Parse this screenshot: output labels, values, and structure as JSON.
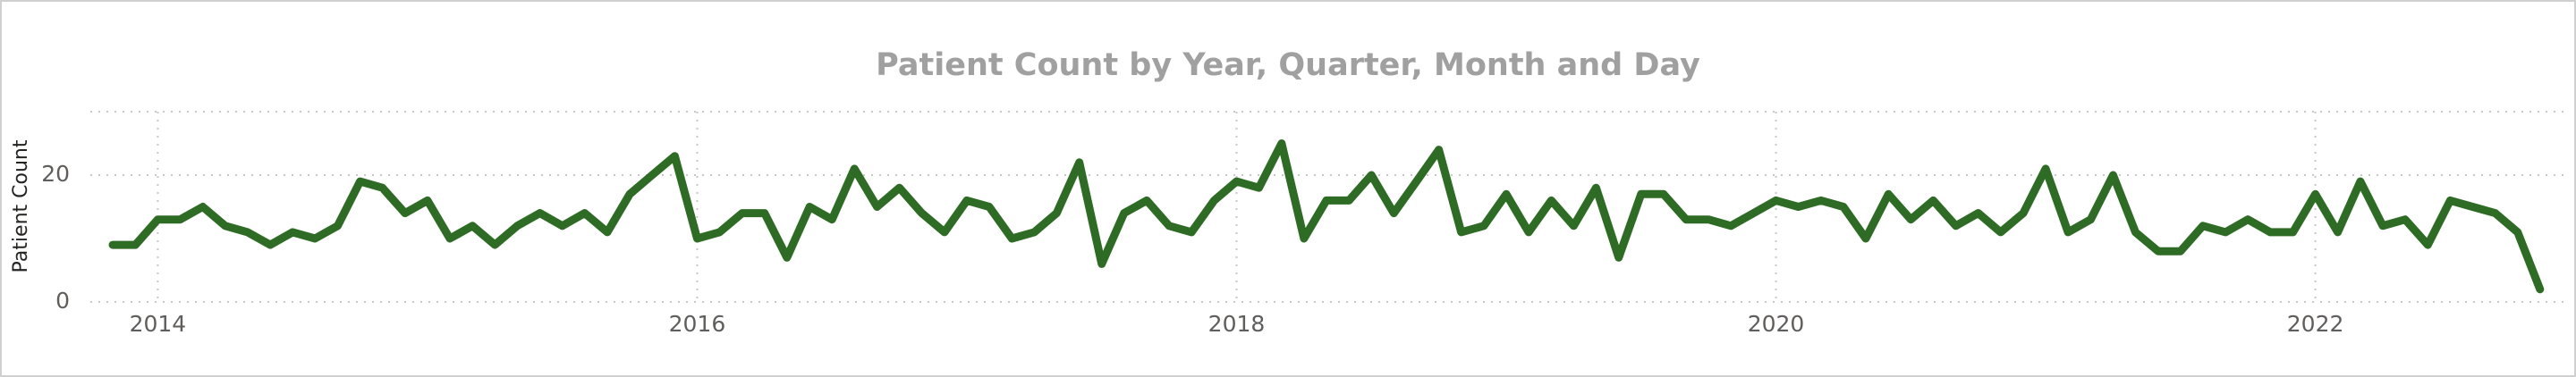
{
  "chart_data": {
    "type": "line",
    "title": "Patient Count by Year, Quarter, Month and Day",
    "ylabel": "Patient Count",
    "x": [
      2013.833,
      2013.917,
      2014,
      2014.083,
      2014.167,
      2014.25,
      2014.333,
      2014.417,
      2014.5,
      2014.583,
      2014.667,
      2014.75,
      2014.833,
      2014.917,
      2015,
      2015.083,
      2015.167,
      2015.25,
      2015.333,
      2015.417,
      2015.5,
      2015.583,
      2015.667,
      2015.75,
      2015.833,
      2015.917,
      2016,
      2016.083,
      2016.167,
      2016.25,
      2016.333,
      2016.417,
      2016.5,
      2016.583,
      2016.667,
      2016.75,
      2016.833,
      2016.917,
      2017,
      2017.083,
      2017.167,
      2017.25,
      2017.333,
      2017.417,
      2017.5,
      2017.583,
      2017.667,
      2017.75,
      2017.833,
      2017.917,
      2018,
      2018.083,
      2018.167,
      2018.25,
      2018.333,
      2018.417,
      2018.5,
      2018.583,
      2018.667,
      2018.75,
      2018.833,
      2018.917,
      2019,
      2019.083,
      2019.167,
      2019.25,
      2019.333,
      2019.417,
      2019.5,
      2019.583,
      2019.667,
      2019.75,
      2019.833,
      2019.917,
      2020,
      2020.083,
      2020.167,
      2020.25,
      2020.333,
      2020.417,
      2020.5,
      2020.583,
      2020.667,
      2020.75,
      2020.833,
      2020.917,
      2021,
      2021.083,
      2021.167,
      2021.25,
      2021.333,
      2021.417,
      2021.5,
      2021.583,
      2021.667,
      2021.75,
      2021.833,
      2021.917,
      2022,
      2022.083,
      2022.167,
      2022.25,
      2022.333,
      2022.417,
      2022.5,
      2022.583,
      2022.667,
      2022.75,
      2022.833
    ],
    "values": [
      9,
      9,
      13,
      13,
      15,
      12,
      11,
      9,
      11,
      10,
      12,
      19,
      18,
      14,
      16,
      10,
      12,
      9,
      12,
      14,
      12,
      14,
      11,
      17,
      20,
      23,
      10,
      11,
      14,
      14,
      7,
      15,
      13,
      21,
      15,
      18,
      14,
      11,
      16,
      15,
      10,
      11,
      14,
      22,
      6,
      14,
      16,
      12,
      11,
      16,
      19,
      18,
      25,
      10,
      16,
      16,
      20,
      14,
      19,
      24,
      11,
      12,
      17,
      11,
      16,
      12,
      18,
      7,
      17,
      17,
      13,
      13,
      12,
      14,
      16,
      15,
      16,
      15,
      10,
      17,
      13,
      16,
      12,
      14,
      11,
      14,
      21,
      11,
      13,
      20,
      11,
      8,
      8,
      12,
      11,
      13,
      11,
      11,
      17,
      11,
      19,
      12,
      13,
      9,
      16,
      15,
      14,
      11,
      2
    ],
    "color": "#2e6b25",
    "xlim": [
      2013.75,
      2022.92
    ],
    "xticks": [
      2014,
      2016,
      2018,
      2020,
      2022
    ],
    "ylim": [
      0,
      30
    ],
    "yticks": [
      0,
      20
    ],
    "grid": true
  }
}
